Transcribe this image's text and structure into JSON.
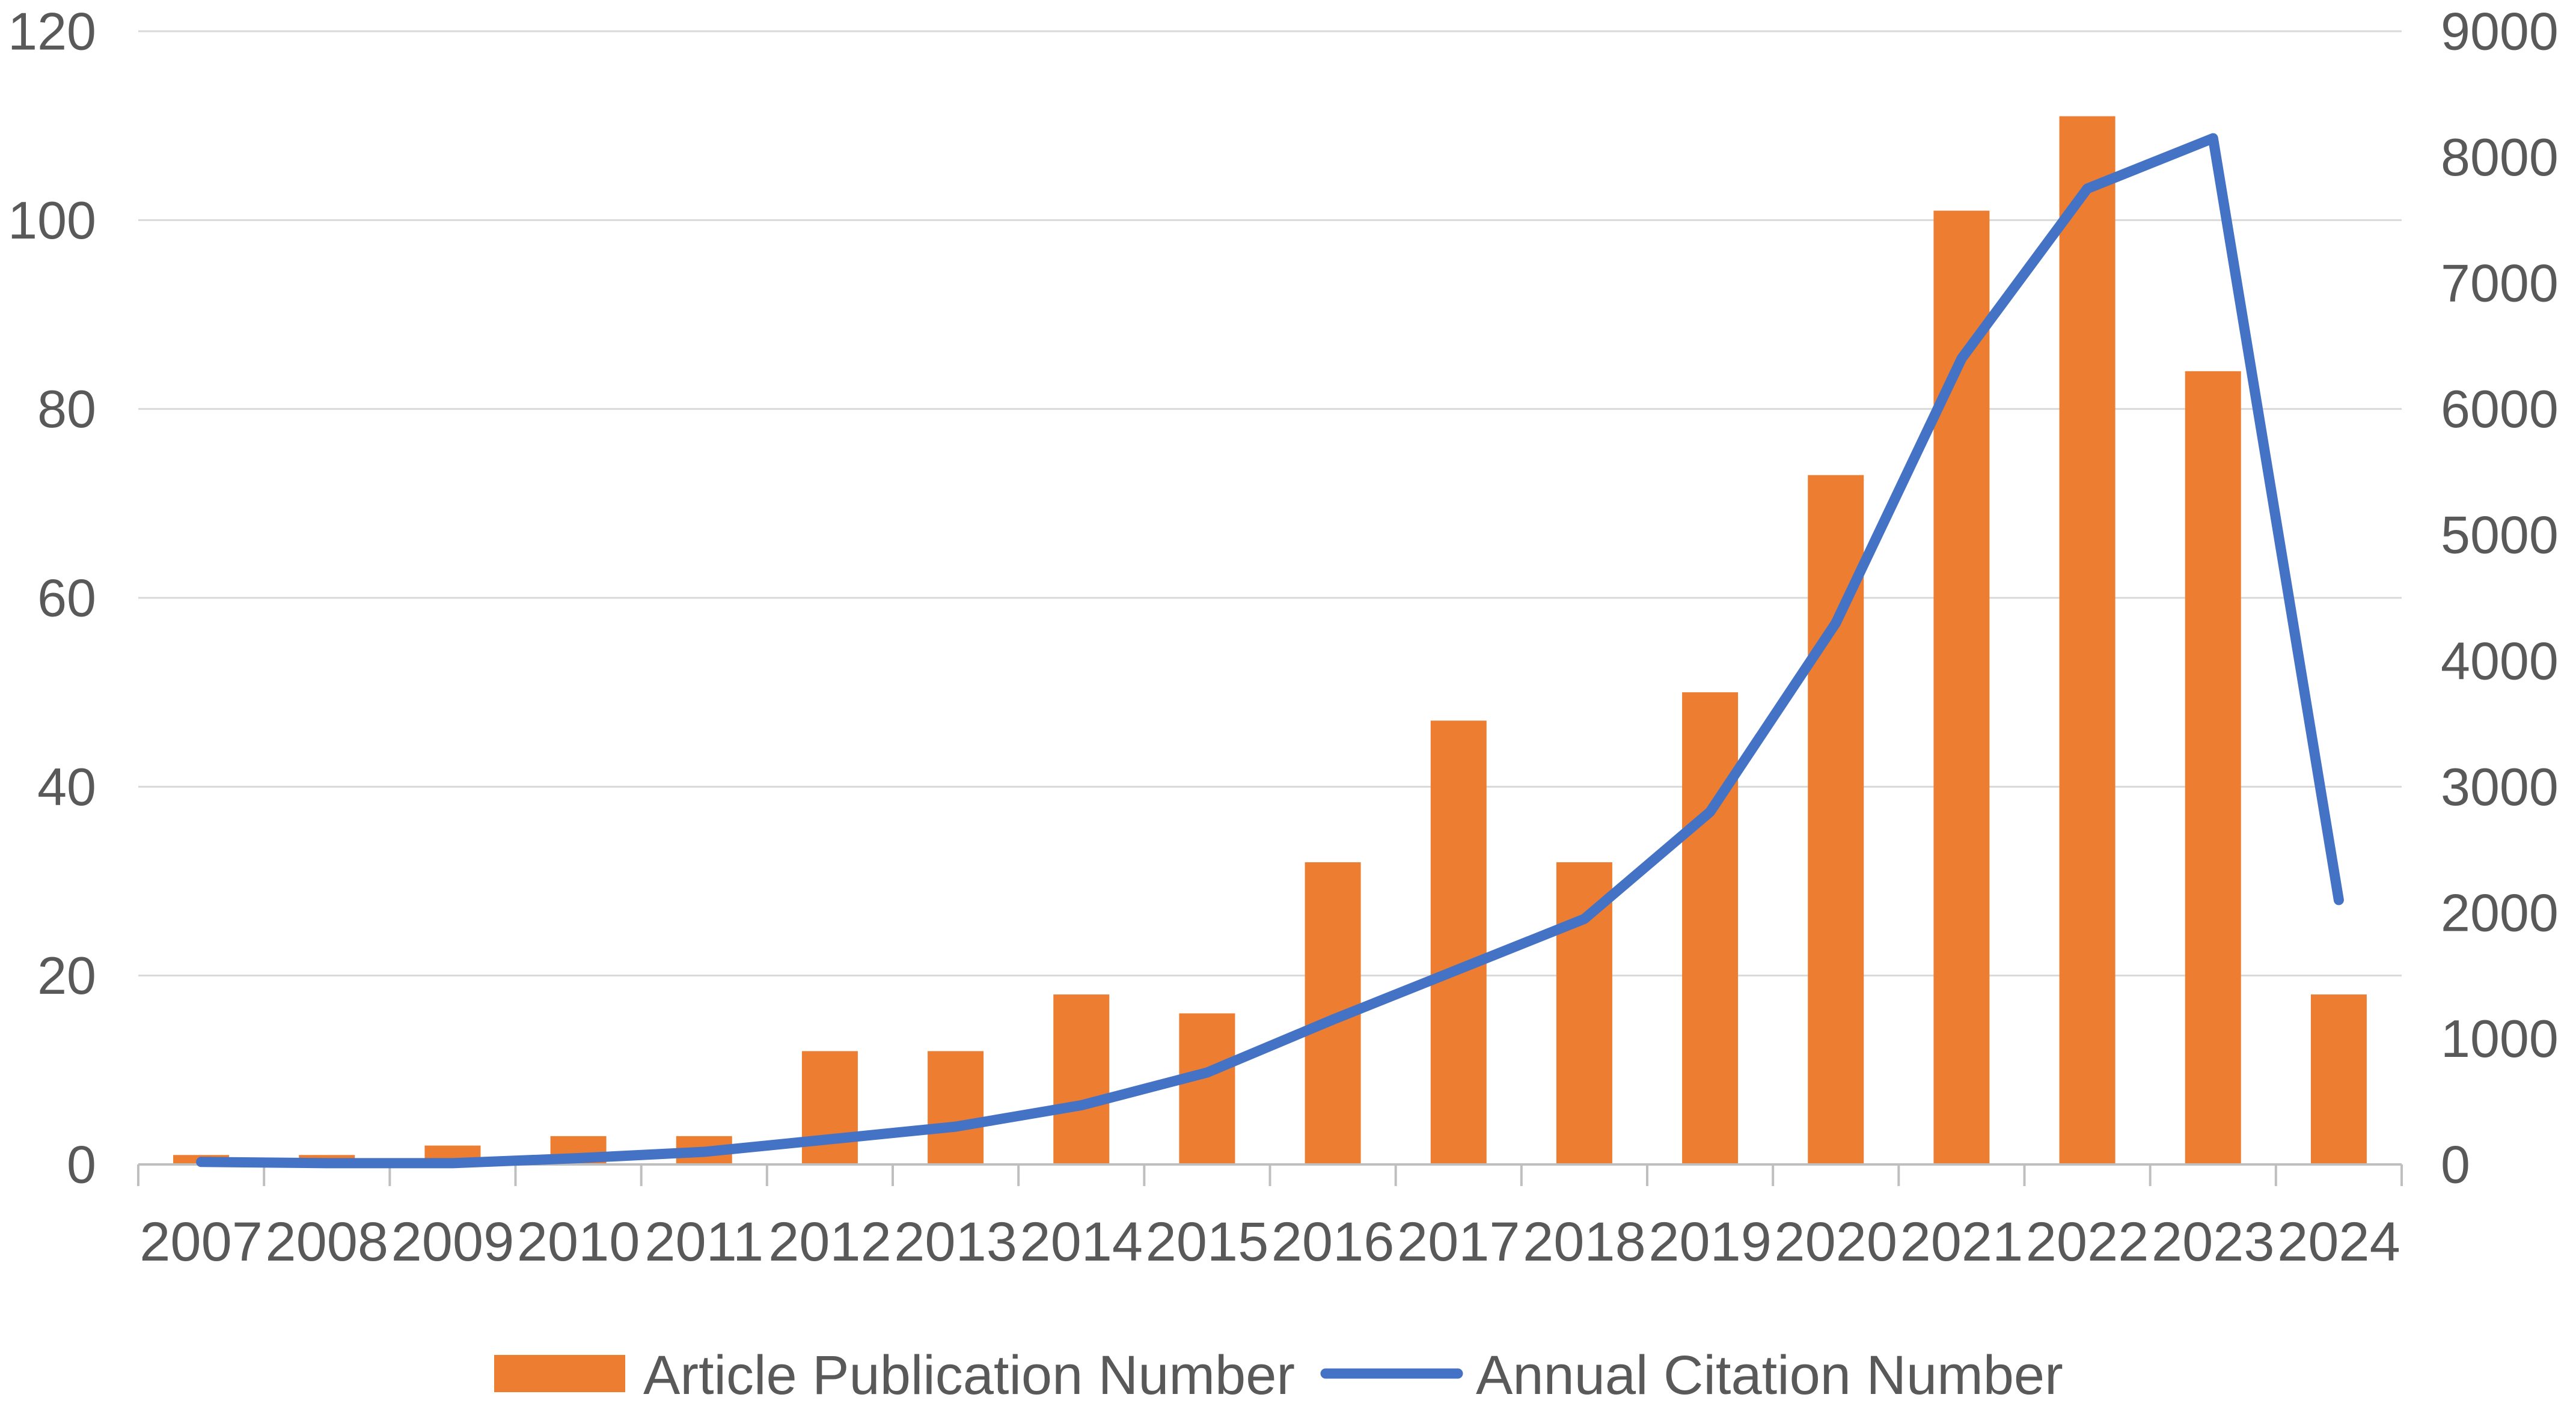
{
  "chart_data": {
    "type": "bar+line",
    "categories": [
      "2007",
      "2008",
      "2009",
      "2010",
      "2011",
      "2012",
      "2013",
      "2014",
      "2015",
      "2016",
      "2017",
      "2018",
      "2019",
      "2020",
      "2021",
      "2022",
      "2023",
      "2024"
    ],
    "series": [
      {
        "name": "Article Publication Number",
        "type": "bar",
        "axis": "left",
        "color": "#ED7D31",
        "values": [
          1,
          1,
          2,
          3,
          3,
          12,
          12,
          18,
          16,
          32,
          47,
          32,
          50,
          73,
          101,
          111,
          84,
          18
        ]
      },
      {
        "name": "Annual Citation Number",
        "type": "line",
        "axis": "right",
        "color": "#4472C4",
        "values": [
          20,
          10,
          10,
          50,
          100,
          200,
          300,
          470,
          730,
          1150,
          1550,
          1950,
          2800,
          4300,
          6400,
          7750,
          8150,
          2100
        ]
      }
    ],
    "left_axis": {
      "ylim": [
        0,
        120
      ],
      "ticks": [
        0,
        20,
        40,
        60,
        80,
        100,
        120
      ]
    },
    "right_axis": {
      "ylim": [
        0,
        9000
      ],
      "ticks": [
        0,
        1000,
        2000,
        3000,
        4000,
        5000,
        6000,
        7000,
        8000,
        9000
      ]
    },
    "grid": true,
    "legend_position": "bottom"
  }
}
